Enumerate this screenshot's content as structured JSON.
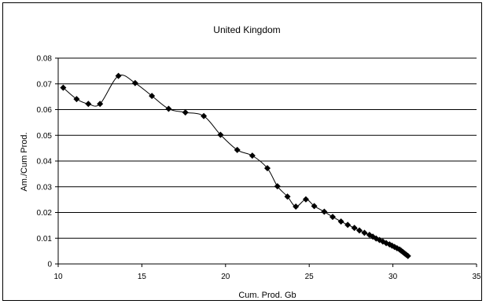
{
  "chart_data": {
    "type": "line",
    "title": "United Kingdom",
    "xlabel": "Cum. Prod. Gb",
    "ylabel": "Am./Cum Prod.",
    "xlim": [
      10,
      35
    ],
    "ylim": [
      0,
      0.08
    ],
    "x_ticks": [
      "10",
      "15",
      "20",
      "25",
      "30",
      "35"
    ],
    "y_ticks": [
      "0",
      "0.01",
      "0.02",
      "0.03",
      "0.04",
      "0.05",
      "0.06",
      "0.07",
      "0.08"
    ],
    "grid": "horizontal",
    "legend": "none",
    "series": [
      {
        "color": "#000000",
        "marker": "diamond",
        "points": [
          [
            10.3,
            0.0685
          ],
          [
            11.1,
            0.0641
          ],
          [
            11.8,
            0.0622
          ],
          [
            12.5,
            0.0622
          ],
          [
            13.6,
            0.0731
          ],
          [
            14.6,
            0.0703
          ],
          [
            15.6,
            0.0653
          ],
          [
            16.6,
            0.0603
          ],
          [
            17.6,
            0.0589
          ],
          [
            18.7,
            0.0575
          ],
          [
            19.7,
            0.0502
          ],
          [
            20.7,
            0.0443
          ],
          [
            21.6,
            0.0421
          ],
          [
            22.5,
            0.0372
          ],
          [
            23.1,
            0.0302
          ],
          [
            23.7,
            0.0262
          ],
          [
            24.2,
            0.0223
          ],
          [
            24.8,
            0.0251
          ],
          [
            25.3,
            0.0225
          ],
          [
            25.9,
            0.0203
          ],
          [
            26.4,
            0.0183
          ],
          [
            26.9,
            0.0165
          ],
          [
            27.3,
            0.0152
          ],
          [
            27.7,
            0.014
          ],
          [
            28.0,
            0.013
          ],
          [
            28.3,
            0.0121
          ],
          [
            28.6,
            0.0113
          ],
          [
            28.8,
            0.0106
          ],
          [
            29.0,
            0.0099
          ],
          [
            29.2,
            0.0093
          ],
          [
            29.4,
            0.0087
          ],
          [
            29.6,
            0.0081
          ],
          [
            29.8,
            0.0076
          ],
          [
            29.95,
            0.0071
          ],
          [
            30.1,
            0.0066
          ],
          [
            30.25,
            0.0061
          ],
          [
            30.4,
            0.0056
          ],
          [
            30.5,
            0.0051
          ],
          [
            30.6,
            0.0046
          ],
          [
            30.7,
            0.0041
          ],
          [
            30.8,
            0.0036
          ],
          [
            30.9,
            0.0031
          ]
        ]
      }
    ]
  }
}
